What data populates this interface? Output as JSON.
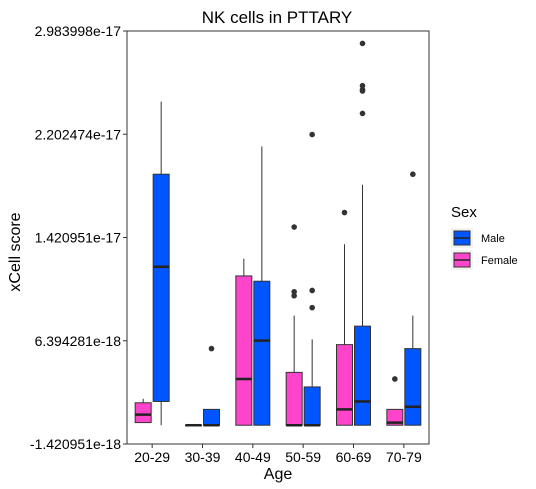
{
  "chart_data": {
    "type": "boxplot",
    "title": "NK cells in PTTARY",
    "xlabel": "Age",
    "ylabel": "xCell score",
    "ylim": [
      -1.420951e-18,
      2.983998e-17
    ],
    "yticks": [
      -1.420951e-18,
      6.394281e-18,
      1.420951e-17,
      2.202474e-17,
      2.983998e-17
    ],
    "ytick_labels": [
      "-1.420951e-18",
      "6.394281e-18",
      "1.420951e-17",
      "2.202474e-17",
      "2.983998e-17"
    ],
    "categories": [
      "20-29",
      "30-39",
      "40-49",
      "50-59",
      "60-69",
      "70-79"
    ],
    "grid": false,
    "legend": {
      "title": "Sex",
      "position": "right",
      "entries": [
        {
          "name": "Male",
          "color": "#0055ff"
        },
        {
          "name": "Female",
          "color": "#ff44cc"
        }
      ]
    },
    "series": [
      {
        "name": "Female",
        "color": "#ff44cc",
        "boxes": [
          {
            "category": "20-29",
            "min": 2e-19,
            "q1": 2e-19,
            "median": 8e-19,
            "q3": 1.7e-18,
            "max": 2e-18,
            "outliers": []
          },
          {
            "category": "30-39",
            "min": 0.0,
            "q1": 0.0,
            "median": 0.0,
            "q3": 0.0,
            "max": 0.0,
            "outliers": []
          },
          {
            "category": "40-49",
            "min": 0.0,
            "q1": 0.0,
            "median": 3.5e-18,
            "q3": 1.13e-17,
            "max": 1.26e-17,
            "outliers": []
          },
          {
            "category": "50-59",
            "min": 0.0,
            "q1": 0.0,
            "median": 0.0,
            "q3": 4e-18,
            "max": 8.3e-18,
            "outliers": [
              1.5e-17,
              1.01e-17,
              9.8e-18
            ]
          },
          {
            "category": "60-69",
            "min": 0.0,
            "q1": 0.0,
            "median": 1.2e-18,
            "q3": 6.1e-18,
            "max": 1.37e-17,
            "outliers": [
              1.61e-17
            ]
          },
          {
            "category": "70-79",
            "min": 0.0,
            "q1": 0.0,
            "median": 2e-19,
            "q3": 1.2e-18,
            "max": 1.2e-18,
            "outliers": [
              3.5e-18
            ]
          }
        ]
      },
      {
        "name": "Male",
        "color": "#0055ff",
        "boxes": [
          {
            "category": "20-29",
            "min": 0.0,
            "q1": 1.8e-18,
            "median": 1.2e-17,
            "q3": 1.9e-17,
            "max": 2.45e-17,
            "outliers": []
          },
          {
            "category": "30-39",
            "min": 0.0,
            "q1": 0.0,
            "median": 0.0,
            "q3": 1.2e-18,
            "max": 1.2e-18,
            "outliers": [
              5.8e-18
            ]
          },
          {
            "category": "40-49",
            "min": 0.0,
            "q1": 0.0,
            "median": 6.4e-18,
            "q3": 1.09e-17,
            "max": 2.11e-17,
            "outliers": []
          },
          {
            "category": "50-59",
            "min": 0.0,
            "q1": 0.0,
            "median": 0.0,
            "q3": 2.9e-18,
            "max": 6.5e-18,
            "outliers": [
              2.2e-17,
              1.02e-17,
              8.9e-18
            ]
          },
          {
            "category": "60-69",
            "min": 0.0,
            "q1": 0.0,
            "median": 1.8e-18,
            "q3": 7.5e-18,
            "max": 1.82e-17,
            "outliers": [
              2.89e-17,
              2.57e-17,
              2.54e-17,
              2.53e-17,
              2.36e-17
            ]
          },
          {
            "category": "70-79",
            "min": 0.0,
            "q1": 0.0,
            "median": 1.4e-18,
            "q3": 5.8e-18,
            "max": 8.3e-18,
            "outliers": [
              1.9e-17
            ]
          }
        ]
      }
    ]
  }
}
